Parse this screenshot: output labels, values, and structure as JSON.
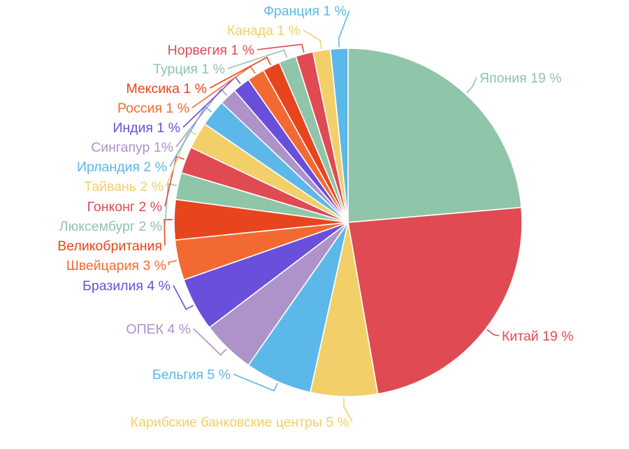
{
  "chart_data": {
    "type": "pie",
    "title": "",
    "slices": [
      {
        "label": "Япония 19 %",
        "value": 19,
        "color": "#8fc5a8"
      },
      {
        "label": "Китай 19 %",
        "value": 19,
        "color": "#e04a53"
      },
      {
        "label": "Карибские банковские центры 5 %",
        "value": 5,
        "color": "#f2cf68"
      },
      {
        "label": "Бельгия 5 %",
        "value": 5,
        "color": "#5cb8e8"
      },
      {
        "label": "ОПЕК 4 %",
        "value": 4,
        "color": "#ad93c9"
      },
      {
        "label": "Бразилия 4 %",
        "value": 4,
        "color": "#6a4fdc"
      },
      {
        "label": "Швейцария 3 %",
        "value": 3,
        "color": "#f26a31"
      },
      {
        "label": "Великобритания",
        "value": 3,
        "color": "#e8441e"
      },
      {
        "label": "Люксембург 2 %",
        "value": 2,
        "color": "#8fc5a8"
      },
      {
        "label": "Гонконг 2 %",
        "value": 2,
        "color": "#e04a53"
      },
      {
        "label": "Тайвань 2 %",
        "value": 2,
        "color": "#f2cf68"
      },
      {
        "label": "Ирландия 2 %",
        "value": 2,
        "color": "#5cb8e8"
      },
      {
        "label": "Сингапур 1%",
        "value": 1.3,
        "color": "#ad93c9"
      },
      {
        "label": "Индия 1 %",
        "value": 1.3,
        "color": "#6a4fdc"
      },
      {
        "label": "Россия 1 %",
        "value": 1.3,
        "color": "#f26a31"
      },
      {
        "label": "Мексика 1 %",
        "value": 1.3,
        "color": "#e8441e"
      },
      {
        "label": "Турция 1 %",
        "value": 1.3,
        "color": "#8fc5a8"
      },
      {
        "label": "Норвегия 1 %",
        "value": 1.3,
        "color": "#e04a53"
      },
      {
        "label": "Канада 1 %",
        "value": 1.3,
        "color": "#f2cf68"
      },
      {
        "label": "Франция 1 %",
        "value": 1.3,
        "color": "#5cb8e8"
      }
    ]
  }
}
